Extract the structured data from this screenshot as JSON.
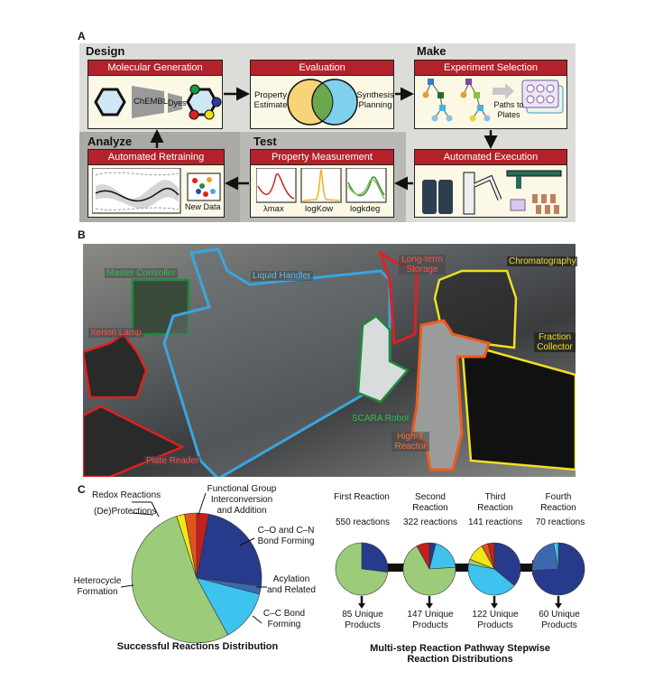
{
  "panel_a": {
    "label": "A",
    "stages": {
      "design": "Design",
      "make": "Make",
      "analyze": "Analyze",
      "test": "Test"
    },
    "molecular_generation": {
      "title": "Molecular Generation",
      "chembl": "ChEMBL",
      "dyes": "Dyes"
    },
    "evaluation": {
      "title": "Evaluation",
      "left": "Property Estimate",
      "right": "Synthesis Planning"
    },
    "experiment_selection": {
      "title": "Experiment Selection",
      "paths": "Paths to Plates"
    },
    "automated_execution": {
      "title": "Automated Execution"
    },
    "property_measurement": {
      "title": "Property Measurement",
      "m1": "λmax",
      "m2": "logKow",
      "m3": "logkdeg"
    },
    "automated_retraining": {
      "title": "Automated Retraining",
      "new_data": "New Data"
    }
  },
  "panel_b": {
    "label": "B",
    "components": {
      "master_controller": "Master Controller",
      "liquid_handler": "Liquid Handler",
      "long_term_storage": "Long-term Storage",
      "chromatography": "Chromatography",
      "xenon_lamp": "Xenon Lamp",
      "fraction_collector": "Fraction Collector",
      "scara_robot": "SCARA Robot",
      "high_t_reactor": "High-T Reactor",
      "plate_reader": "Plate Reader"
    },
    "colors": {
      "master_controller": "#1e8a3a",
      "liquid_handler": "#3aa6e0",
      "long_term_storage": "#e02020",
      "chromatography": "#f0e020",
      "xenon_lamp": "#e02020",
      "fraction_collector": "#f0e020",
      "scara_robot": "#1e8a3a",
      "high_t_reactor": "#f05a1e",
      "plate_reader": "#e02020"
    }
  },
  "panel_c": {
    "label": "C"
  },
  "chart_data": [
    {
      "type": "pie",
      "title": "Successful Reactions Distribution",
      "slices": [
        {
          "name": "Functional Group Interconversion and Addition",
          "value": 3,
          "color": "#c3201f"
        },
        {
          "name": "C–O and C–N Bond Forming",
          "value": 24,
          "color": "#283a8c"
        },
        {
          "name": "Acylation and Related",
          "value": 2,
          "color": "#3c68b0"
        },
        {
          "name": "C–C Bond Forming",
          "value": 13,
          "color": "#3ec3ef"
        },
        {
          "name": "Heterocycle Formation",
          "value": 53,
          "color": "#9ccc7a"
        },
        {
          "name": "(De)Protections",
          "value": 2,
          "color": "#f3e614"
        },
        {
          "name": "Redox Reactions",
          "value": 3,
          "color": "#e2541e"
        }
      ]
    },
    {
      "type": "pie",
      "title": "Multi-step Reaction Pathway Stepwise Reaction Distributions",
      "steps": [
        {
          "name": "First Reaction",
          "reactions": "550 reactions",
          "products": "85 Unique Products",
          "slices": [
            {
              "value": 27,
              "color": "#283a8c"
            },
            {
              "value": 73,
              "color": "#9ccc7a"
            }
          ]
        },
        {
          "name": "Second Reaction",
          "reactions": "322 reactions",
          "products": "147 Unique Products",
          "slices": [
            {
              "value": 4,
              "color": "#283a8c"
            },
            {
              "value": 20,
              "color": "#3ec3ef"
            },
            {
              "value": 68,
              "color": "#9ccc7a"
            },
            {
              "value": 8,
              "color": "#c3201f"
            }
          ]
        },
        {
          "name": "Third Reaction",
          "reactions": "141 reactions",
          "products": "122 Unique Products",
          "slices": [
            {
              "value": 36,
              "color": "#283a8c"
            },
            {
              "value": 42,
              "color": "#3ec3ef"
            },
            {
              "value": 3,
              "color": "#9ccc7a"
            },
            {
              "value": 11,
              "color": "#f3e614"
            },
            {
              "value": 4,
              "color": "#e2541e"
            },
            {
              "value": 4,
              "color": "#c3201f"
            }
          ]
        },
        {
          "name": "Fourth Reaction",
          "reactions": "70 reactions",
          "products": "60 Unique Products",
          "slices": [
            {
              "value": 74,
              "color": "#283a8c"
            },
            {
              "value": 23,
              "color": "#3c68b0"
            },
            {
              "value": 3,
              "color": "#3ec3ef"
            }
          ]
        }
      ]
    }
  ]
}
